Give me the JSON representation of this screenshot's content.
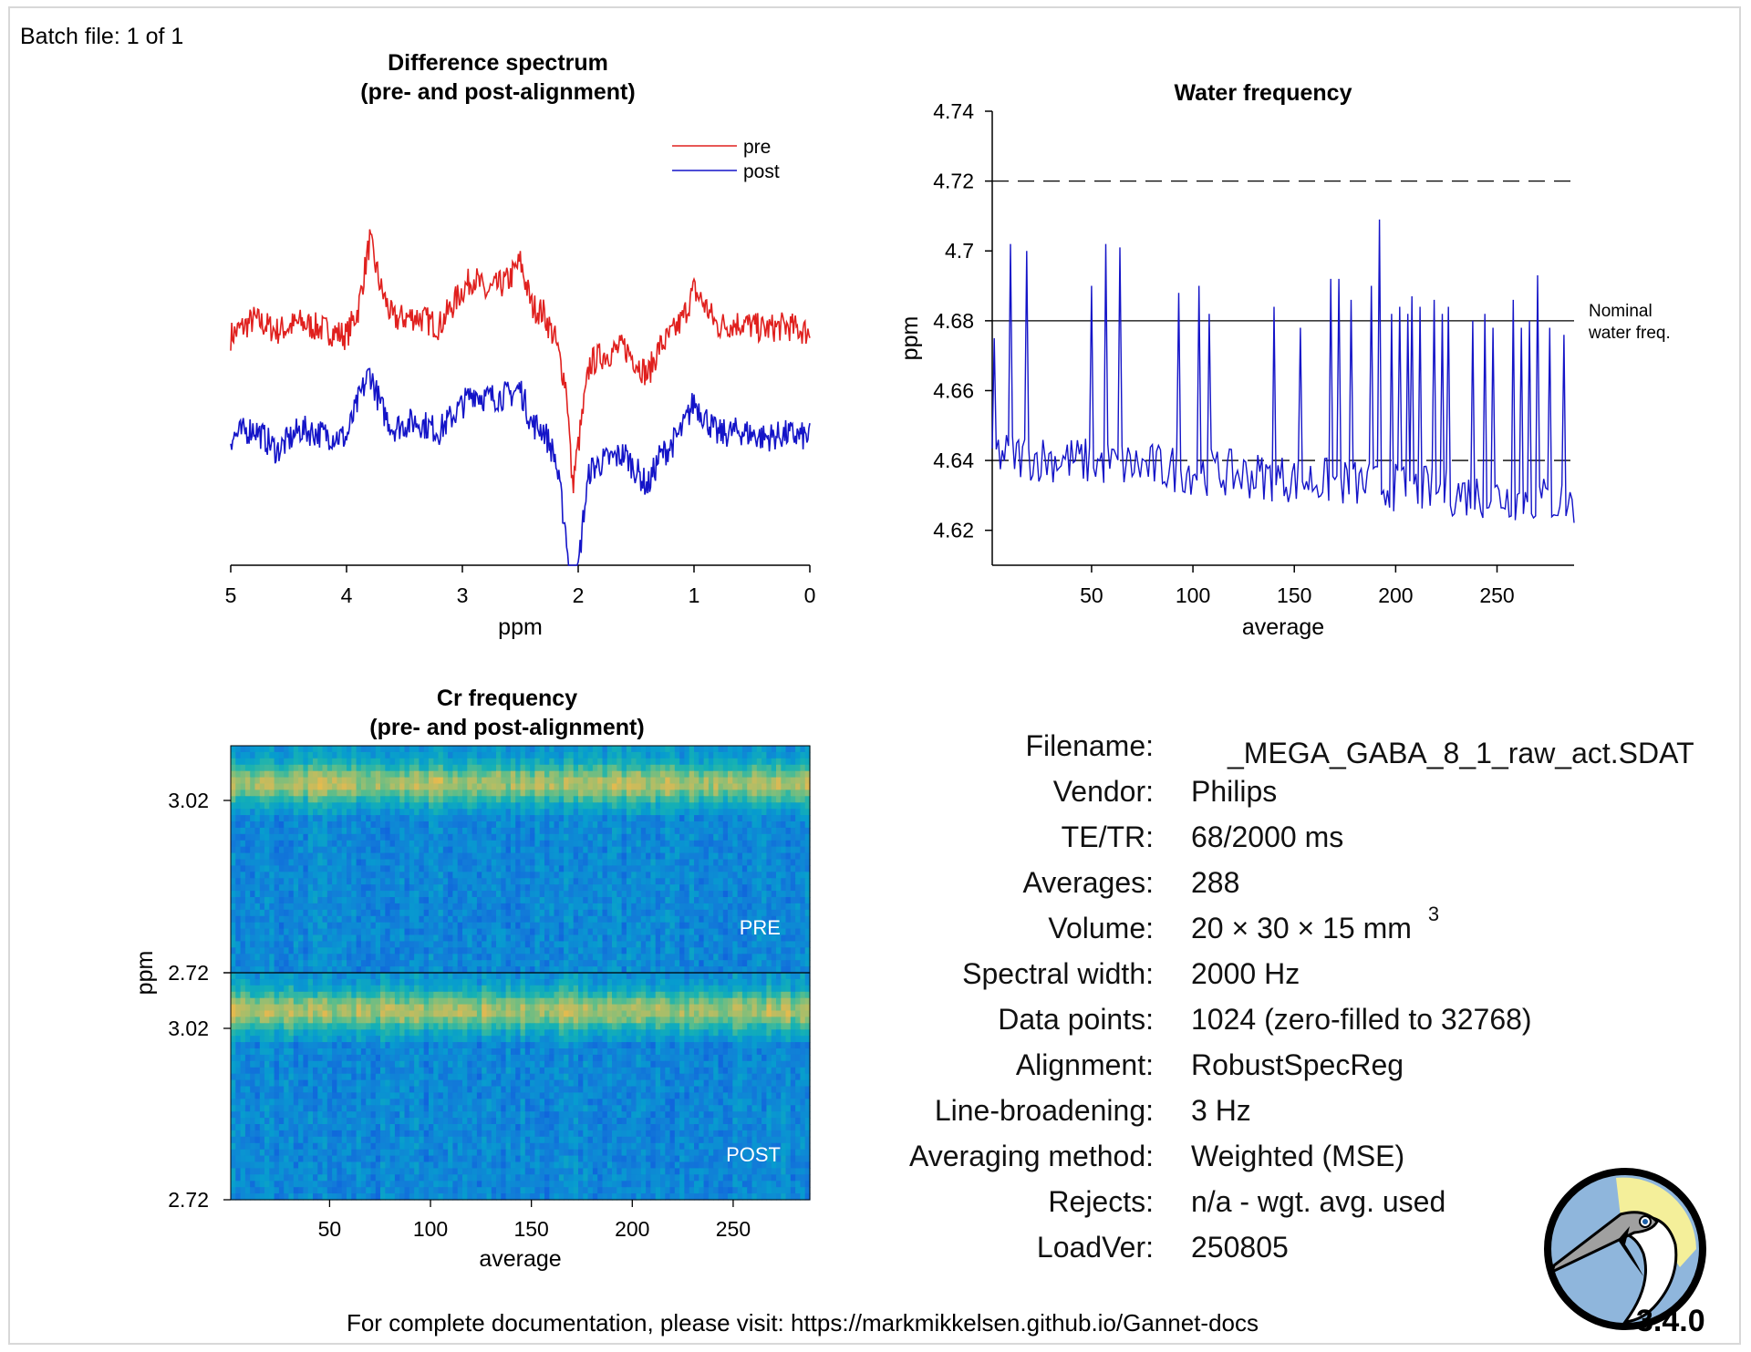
{
  "batch_label": "Batch file: 1 of 1",
  "footer_text": "For complete documentation, please visit: https://markmikkelsen.github.io/Gannet-docs",
  "version": "3.4.0",
  "logo": {
    "icon": "gannet-bird-logo"
  },
  "colors": {
    "pre": "#e0201e",
    "post": "#1414c8",
    "axis": "#000000"
  },
  "chart_data": [
    {
      "type": "line",
      "id": "difference-spectrum",
      "title": [
        "Difference spectrum",
        "(pre- and post-alignment)"
      ],
      "xlabel": "ppm",
      "ylabel": "",
      "xlim": [
        5,
        0
      ],
      "xticks": [
        5,
        4,
        3,
        2,
        1,
        0
      ],
      "x_reversed": true,
      "legend": {
        "entries": [
          "pre",
          "post"
        ],
        "placement": "top-right"
      },
      "series": [
        {
          "name": "pre",
          "color": "#e0201e",
          "baseline": 0.6,
          "x": [
            5.0,
            4.8,
            4.6,
            4.4,
            4.2,
            4.0,
            3.9,
            3.8,
            3.7,
            3.6,
            3.4,
            3.2,
            3.0,
            2.9,
            2.8,
            2.6,
            2.5,
            2.4,
            2.3,
            2.2,
            2.1,
            2.05,
            2.0,
            1.95,
            1.9,
            1.8,
            1.6,
            1.4,
            1.3,
            1.2,
            1.1,
            1.0,
            0.9,
            0.8,
            0.6,
            0.4,
            0.2,
            0.0
          ],
          "y": [
            0.62,
            0.72,
            0.65,
            0.7,
            0.66,
            0.62,
            0.78,
            1.2,
            0.9,
            0.72,
            0.74,
            0.68,
            0.9,
            0.98,
            0.88,
            0.96,
            1.07,
            0.8,
            0.76,
            0.6,
            0.3,
            -0.3,
            -0.05,
            0.2,
            0.45,
            0.5,
            0.55,
            0.38,
            0.55,
            0.62,
            0.72,
            0.9,
            0.8,
            0.68,
            0.7,
            0.66,
            0.68,
            0.64
          ]
        },
        {
          "name": "post",
          "color": "#1414c8",
          "baseline": 0.0,
          "x": [
            5.0,
            4.8,
            4.6,
            4.4,
            4.2,
            4.0,
            3.9,
            3.8,
            3.7,
            3.6,
            3.4,
            3.2,
            3.0,
            2.9,
            2.8,
            2.6,
            2.5,
            2.4,
            2.3,
            2.2,
            2.1,
            2.05,
            2.0,
            1.95,
            1.9,
            1.8,
            1.6,
            1.4,
            1.3,
            1.2,
            1.1,
            1.0,
            0.9,
            0.8,
            0.6,
            0.4,
            0.2,
            0.0
          ],
          "y": [
            0.0,
            0.06,
            -0.08,
            0.05,
            0.02,
            0.0,
            0.22,
            0.4,
            0.18,
            0.06,
            0.1,
            0.04,
            0.2,
            0.28,
            0.24,
            0.26,
            0.3,
            0.08,
            0.05,
            -0.12,
            -0.6,
            -1.3,
            -0.8,
            -0.45,
            -0.2,
            -0.15,
            -0.1,
            -0.3,
            -0.12,
            -0.05,
            0.05,
            0.22,
            0.12,
            0.02,
            0.04,
            0.0,
            0.02,
            0.0
          ]
        }
      ]
    },
    {
      "type": "line",
      "id": "water-frequency",
      "title": [
        "Water frequency"
      ],
      "xlabel": "average",
      "ylabel": "ppm",
      "xlim": [
        1,
        288
      ],
      "ylim": [
        4.61,
        4.74
      ],
      "xticks": [
        50,
        100,
        150,
        200,
        250
      ],
      "yticks": [
        4.62,
        4.64,
        4.66,
        4.68,
        4.7,
        4.72,
        4.74
      ],
      "ytick_labels": [
        "4.62",
        "4.64",
        "4.66",
        "4.68",
        "4.7",
        "4.72",
        "4.74"
      ],
      "reference_lines": [
        {
          "y": 4.72,
          "style": "dashed"
        },
        {
          "y": 4.68,
          "style": "solid",
          "label": [
            "Nominal",
            "water freq."
          ]
        },
        {
          "y": 4.64,
          "style": "dashed"
        }
      ],
      "series": [
        {
          "name": "water",
          "color": "#1414c8",
          "baseline_start": 4.642,
          "baseline_end": 4.628,
          "spikes": [
            {
              "x": 2,
              "y": 4.675
            },
            {
              "x": 10,
              "y": 4.702
            },
            {
              "x": 18,
              "y": 4.7
            },
            {
              "x": 50,
              "y": 4.69
            },
            {
              "x": 57,
              "y": 4.702
            },
            {
              "x": 64,
              "y": 4.701
            },
            {
              "x": 93,
              "y": 4.688
            },
            {
              "x": 103,
              "y": 4.69
            },
            {
              "x": 108,
              "y": 4.682
            },
            {
              "x": 140,
              "y": 4.684
            },
            {
              "x": 153,
              "y": 4.678
            },
            {
              "x": 168,
              "y": 4.692
            },
            {
              "x": 172,
              "y": 4.692
            },
            {
              "x": 178,
              "y": 4.686
            },
            {
              "x": 188,
              "y": 4.69
            },
            {
              "x": 192,
              "y": 4.709
            },
            {
              "x": 198,
              "y": 4.682
            },
            {
              "x": 202,
              "y": 4.684
            },
            {
              "x": 206,
              "y": 4.682
            },
            {
              "x": 208,
              "y": 4.687
            },
            {
              "x": 212,
              "y": 4.684
            },
            {
              "x": 219,
              "y": 4.686
            },
            {
              "x": 223,
              "y": 4.682
            },
            {
              "x": 226,
              "y": 4.684
            },
            {
              "x": 238,
              "y": 4.68
            },
            {
              "x": 244,
              "y": 4.682
            },
            {
              "x": 248,
              "y": 4.678
            },
            {
              "x": 258,
              "y": 4.686
            },
            {
              "x": 262,
              "y": 4.678
            },
            {
              "x": 266,
              "y": 4.68
            },
            {
              "x": 270,
              "y": 4.693
            },
            {
              "x": 276,
              "y": 4.678
            },
            {
              "x": 283,
              "y": 4.676
            }
          ]
        }
      ]
    },
    {
      "type": "heatmap",
      "id": "cr-frequency",
      "title": [
        "Cr frequency",
        "(pre- and post-alignment)"
      ],
      "xlabel": "average",
      "ylabel": "ppm",
      "xlim": [
        1,
        288
      ],
      "xticks": [
        50,
        100,
        150,
        200,
        250
      ],
      "panels": [
        {
          "label": "PRE",
          "yticks": [
            3.02,
            2.72
          ],
          "ytick_labels": [
            "3.02",
            "2.72"
          ]
        },
        {
          "label": "POST",
          "yticks": [
            3.02,
            2.72
          ],
          "ytick_labels": [
            "3.02",
            "2.72"
          ]
        }
      ],
      "colormap": "parula",
      "ridge_ppm": 3.02
    }
  ],
  "info_table": [
    {
      "label": "Filename:",
      "value": "_MEGA_GABA_8_1_raw_act.SDAT"
    },
    {
      "label": "Vendor:",
      "value": "Philips"
    },
    {
      "label": "TE/TR:",
      "value": "68/2000 ms"
    },
    {
      "label": "Averages:",
      "value": "288"
    },
    {
      "label": "Volume:",
      "value": "20  × 30  × 15 mm",
      "superscript": "3"
    },
    {
      "label": "Spectral width:",
      "value": "2000 Hz"
    },
    {
      "label": "Data points:",
      "value": "1024 (zero-filled to 32768)"
    },
    {
      "label": "Alignment:",
      "value": "RobustSpecReg"
    },
    {
      "label": "Line-broadening:",
      "value": "3 Hz"
    },
    {
      "label": "Averaging method:",
      "value": "Weighted (MSE)"
    },
    {
      "label": "Rejects:",
      "value": "n/a - wgt. avg. used"
    },
    {
      "label": "LoadVer:",
      "value": "250805"
    }
  ]
}
